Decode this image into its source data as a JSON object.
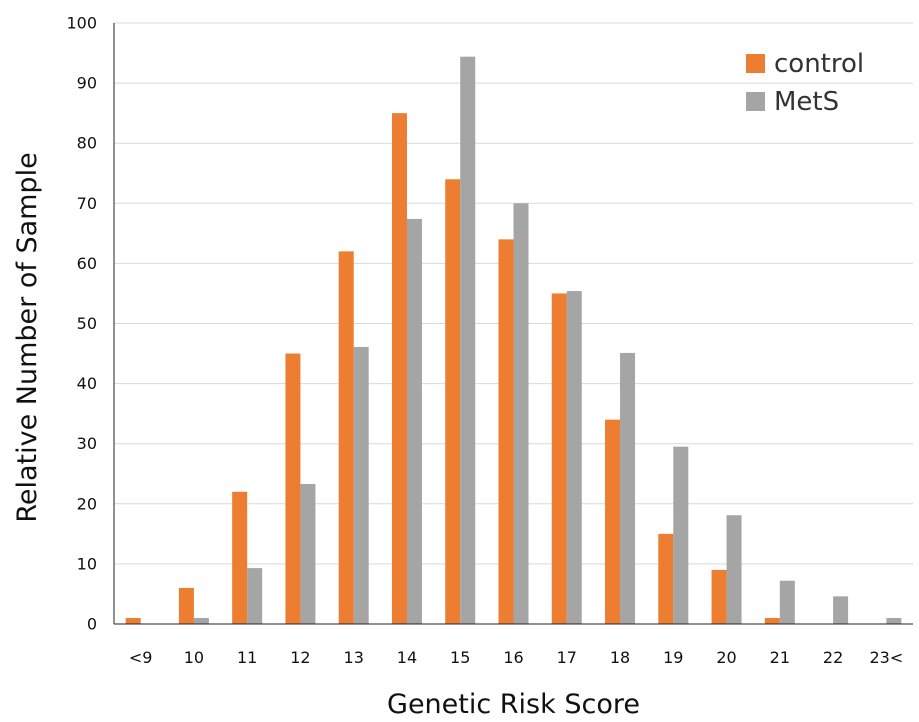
{
  "chart_data": {
    "type": "bar",
    "title": "",
    "xlabel": "Genetic Risk Score",
    "ylabel": "Relative Number of Sample",
    "categories": [
      "<9",
      "10",
      "11",
      "12",
      "13",
      "14",
      "15",
      "16",
      "17",
      "18",
      "19",
      "20",
      "21",
      "22",
      "23<"
    ],
    "series": [
      {
        "name": "control",
        "color": "#ED7D31",
        "values": [
          1,
          6,
          22,
          45,
          62,
          85,
          74,
          64,
          55,
          34,
          15,
          9,
          1,
          0,
          0
        ]
      },
      {
        "name": "MetS",
        "color": "#A5A5A5",
        "values": [
          0,
          1,
          9.3,
          23.3,
          46.1,
          67.4,
          94.4,
          70,
          55.4,
          45.1,
          29.5,
          18.1,
          7.2,
          4.6,
          1
        ]
      }
    ],
    "ylim": [
      0,
      100
    ],
    "yticks": [
      0,
      10,
      20,
      30,
      40,
      50,
      60,
      70,
      80,
      90,
      100
    ],
    "grid": true,
    "legend_position": "top-right"
  }
}
